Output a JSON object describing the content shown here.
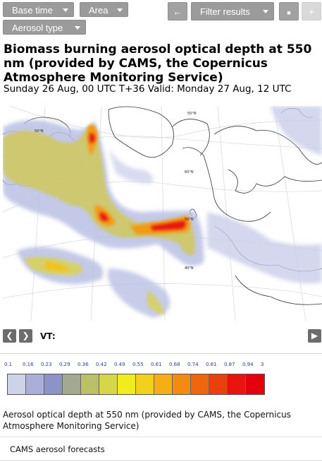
{
  "toolbar": {
    "base_time_label": "Base time",
    "area_label": "Area",
    "filter_results_label": "Filter results",
    "aerosol_type_label": "Aerosol type",
    "back_icon": "←",
    "print_icon": "■",
    "plus_icon": "+"
  },
  "header": {
    "title": "Biomass burning aerosol optical depth at 550 nm (provided by CAMS, the Copernicus Atmosphere Monitoring Service)",
    "subtitle": "Sunday 26 Aug, 00 UTC T+36 Valid: Monday 27 Aug, 12 UTC"
  },
  "map": {
    "lat_labels": [
      "50°N",
      "50°N",
      "60°N",
      "40°N"
    ]
  },
  "navigation": {
    "prev_icon": "❮",
    "next_icon": "❯",
    "play_icon": "▶",
    "vt_label": "VT:"
  },
  "legend": {
    "ticks": [
      "0.1",
      "0.16",
      "0.23",
      "0.29",
      "0.36",
      "0.42",
      "0.49",
      "0.55",
      "0.61",
      "0.68",
      "0.74",
      "0.81",
      "0.87",
      "0.94",
      "3"
    ],
    "colors": [
      "#cfd3ea",
      "#a9afd8",
      "#8d93c7",
      "#a3a990",
      "#bbbf65",
      "#d6d64a",
      "#f0ec1e",
      "#f3d01b",
      "#f5ae16",
      "#f38a12",
      "#f0660f",
      "#ec3f0e",
      "#e8140d",
      "#e5000c"
    ]
  },
  "caption": "Aerosol optical depth at 550 nm (provided by CAMS, the Copernicus Atmosphere Monitoring Service)",
  "footer_label": "CAMS aerosol forecasts"
}
